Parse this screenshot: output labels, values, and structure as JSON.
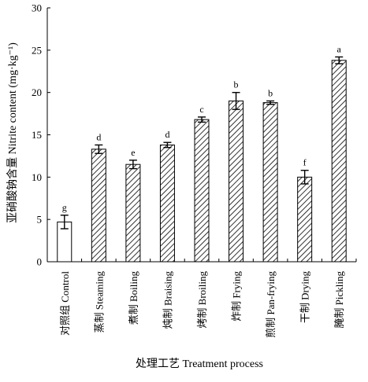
{
  "chart_data": {
    "type": "bar",
    "xlabel": "处理工艺 Treatment process",
    "ylabel": "亚硝酸钠含量 Nitrite content (mg·kg⁻¹)",
    "ylim": [
      0,
      30
    ],
    "yticks": [
      0,
      5,
      10,
      15,
      20,
      25,
      30
    ],
    "grid": false,
    "legend": "none",
    "categories": [
      "对照组 Control",
      "蒸制 Steaming",
      "煮制 Boiling",
      "炖制 Braising",
      "烤制 Broiling",
      "炸制 Frying",
      "煎制 Pan-frying",
      "干制 Drying",
      "腌制 Pickling"
    ],
    "values": [
      4.7,
      13.3,
      11.5,
      13.8,
      16.8,
      19.0,
      18.8,
      10.0,
      23.8
    ],
    "errors": [
      0.8,
      0.5,
      0.5,
      0.3,
      0.3,
      1.0,
      0.2,
      0.8,
      0.4
    ],
    "letters": [
      "g",
      "d",
      "e",
      "d",
      "c",
      "b",
      "b",
      "f",
      "a"
    ],
    "bar_styles": [
      "plain",
      "hatched",
      "hatched",
      "hatched",
      "hatched",
      "hatched",
      "hatched",
      "hatched",
      "hatched"
    ]
  }
}
